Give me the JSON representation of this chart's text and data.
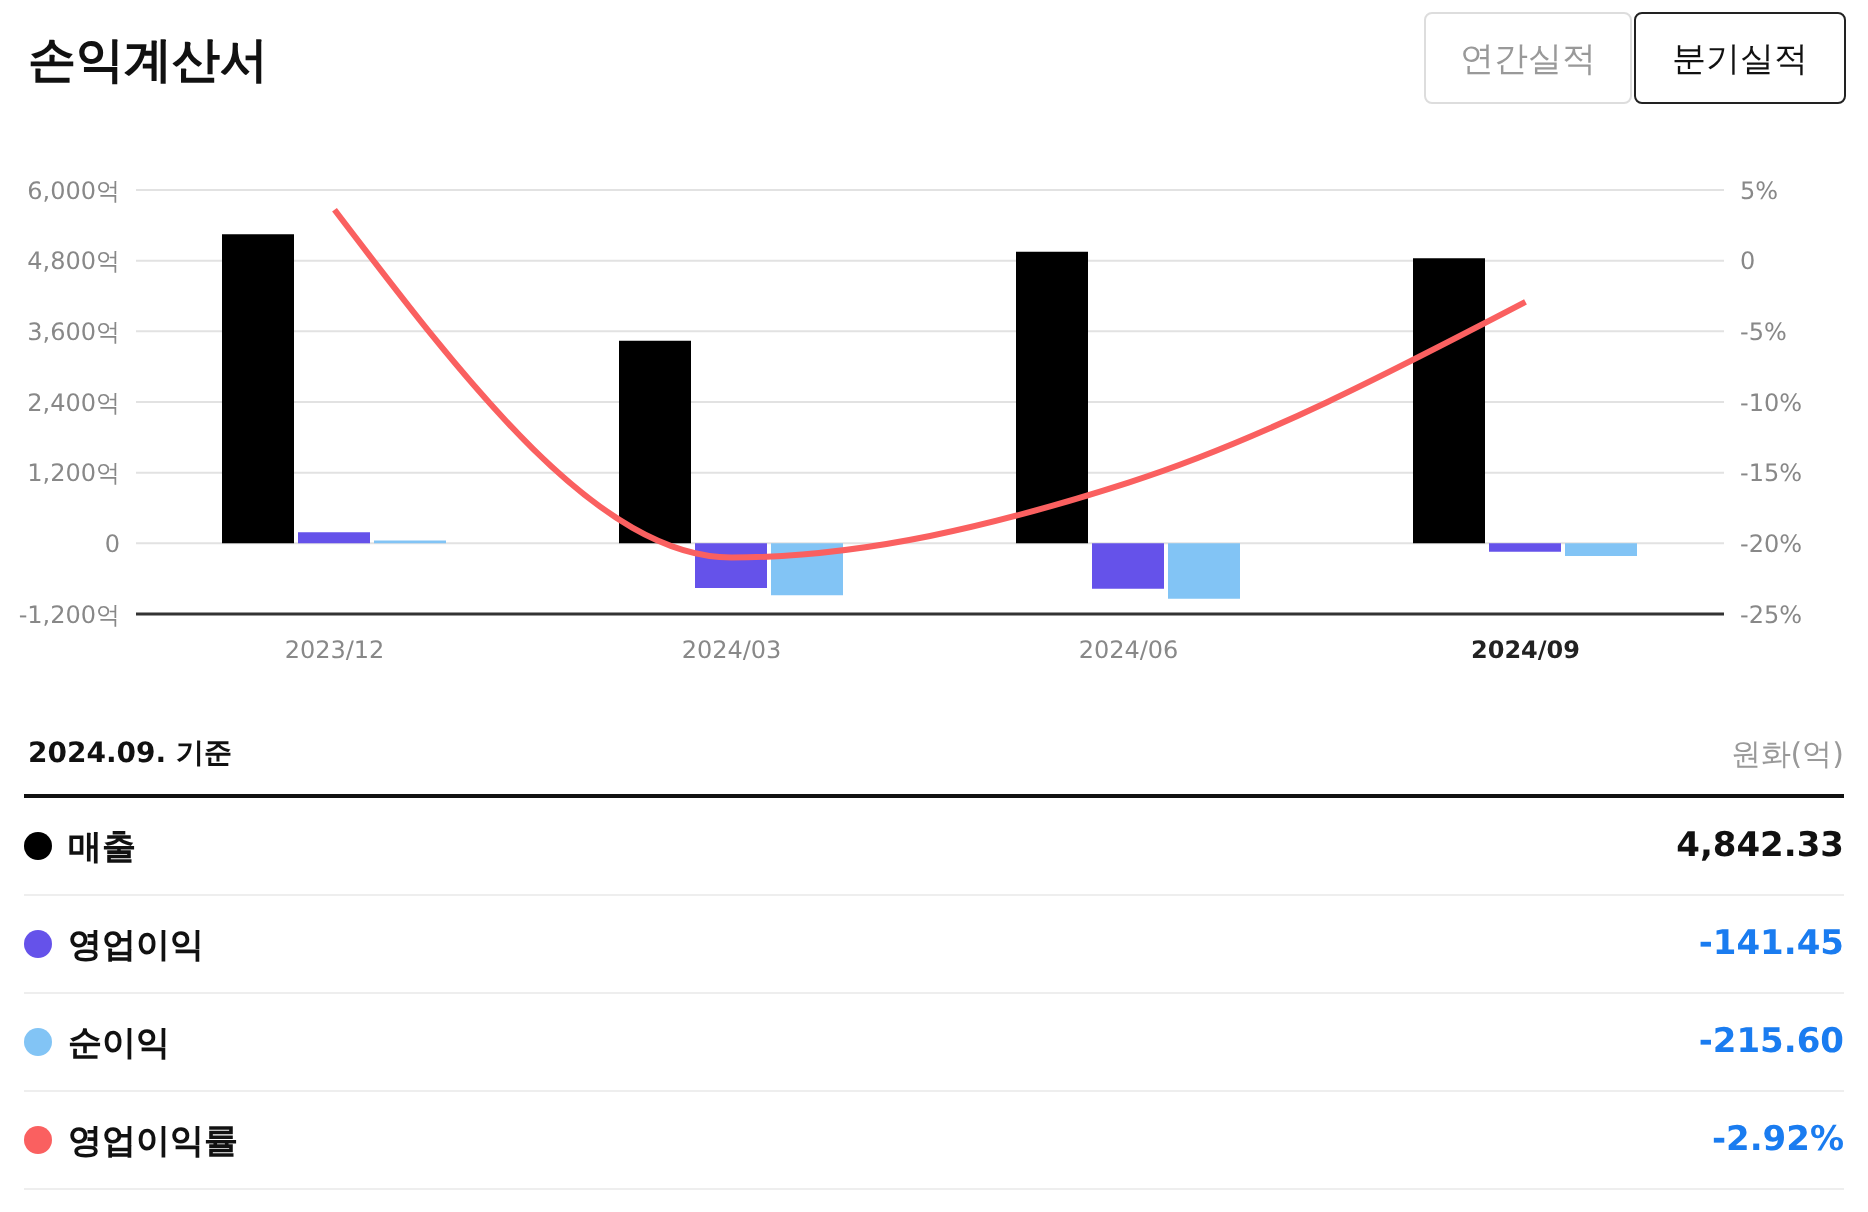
{
  "chart_data": {
    "type": "bar",
    "title": "손익계산서",
    "categories": [
      "2023/12",
      "2024/03",
      "2024/06",
      "2024/09"
    ],
    "series": [
      {
        "name": "매출",
        "color": "#000000",
        "values": [
          5250,
          3440,
          4950,
          4842.33
        ]
      },
      {
        "name": "영업이익",
        "color": "#6552ea",
        "values": [
          190,
          -760,
          -770,
          -141.45
        ]
      },
      {
        "name": "순이익",
        "color": "#82c4f5",
        "values": [
          50,
          -880,
          -940,
          -215.6
        ]
      },
      {
        "name": "영업이익률",
        "type": "line",
        "axis": "y2",
        "color": "#fa6060",
        "values": [
          3.6,
          -21,
          -15.7,
          -2.92
        ]
      }
    ],
    "ylim": [
      -1200,
      6000
    ],
    "yticks": [
      {
        "value": -1200,
        "label": "-1,200억"
      },
      0,
      {
        "value": 1200,
        "label": "1,200억"
      },
      {
        "value": 2400,
        "label": "2,400억"
      },
      {
        "value": 3600,
        "label": "3,600억"
      },
      {
        "value": 4800,
        "label": "4,800억"
      },
      {
        "value": 6000,
        "label": "6,000억"
      }
    ],
    "y2lim": [
      -25,
      5
    ],
    "y2ticks": [
      {
        "value": -25,
        "label": "-25%"
      },
      {
        "value": -20,
        "label": "-20%"
      },
      {
        "value": -15,
        "label": "-15%"
      },
      {
        "value": -10,
        "label": "-10%"
      },
      {
        "value": -5,
        "label": "-5%"
      },
      0,
      {
        "value": 5,
        "label": "5%"
      }
    ],
    "grid": "y",
    "legend": "bottom",
    "marker": "none",
    "annotations": [
      "연간실적",
      "분기실적",
      "2024.09. 기준",
      "원화(억)",
      "4,842.33",
      "-141.45",
      "-215.60",
      "-2.92%"
    ]
  }
}
